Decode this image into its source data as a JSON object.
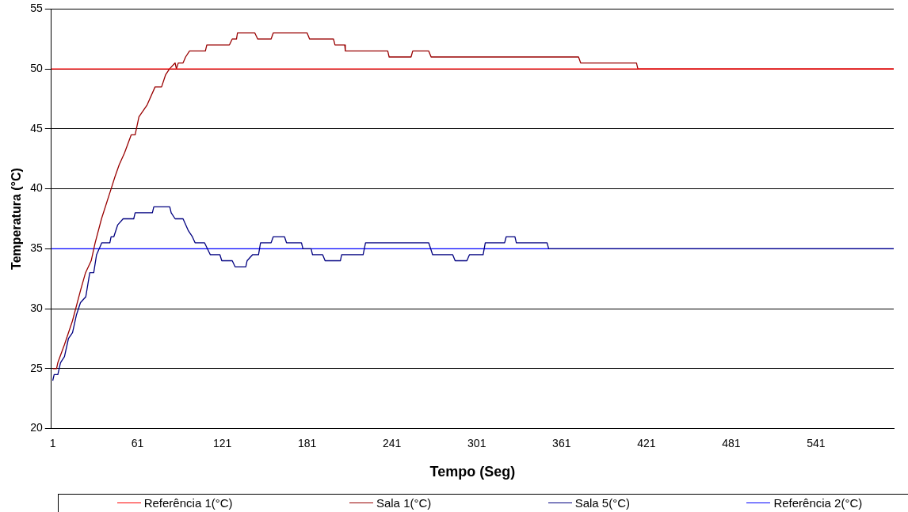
{
  "chart_data": {
    "type": "line",
    "xlabel": "Tempo (Seg)",
    "ylabel": "Temperatura (°C)",
    "xlim": [
      0,
      596
    ],
    "xticks": [
      1,
      61,
      121,
      181,
      241,
      301,
      361,
      421,
      481,
      541
    ],
    "ylim": [
      20,
      55
    ],
    "yticks": [
      20,
      25,
      30,
      35,
      40,
      45,
      50,
      55
    ],
    "grid": "y",
    "legend": "bottom",
    "series": [
      {
        "name": "Referência 1(°C)",
        "color": "#ff0000",
        "x": [
          0,
          596
        ],
        "values": [
          50,
          50
        ]
      },
      {
        "name": "Sala 1(°C)",
        "color": "#990000",
        "x": [
          1,
          3.7,
          4.6,
          9.3,
          15,
          20.6,
          24.2,
          28.2,
          31,
          35.5,
          42.3,
          45,
          48,
          51.8,
          56.5,
          59.3,
          62,
          67.8,
          73.4,
          78,
          80.8,
          83.6,
          87.6,
          88.5,
          89.8,
          93.2,
          95,
          97.8,
          109,
          110,
          126,
          128,
          131,
          131.7,
          144,
          146,
          155.5,
          157,
          181,
          182.7,
          199.6,
          200.7,
          207.6,
          208,
          238,
          239,
          254.5,
          255.7,
          267,
          268.7,
          373,
          374.5,
          414,
          415,
          596
        ],
        "values": [
          25,
          25,
          25.5,
          27,
          29,
          31.5,
          33,
          34,
          35.5,
          37.5,
          40,
          41,
          42,
          43,
          44.5,
          44.5,
          46,
          47,
          48.5,
          48.5,
          49.5,
          50,
          50.5,
          50,
          50.5,
          50.5,
          51,
          51.5,
          51.5,
          52,
          52,
          52.5,
          52.5,
          53,
          53,
          52.5,
          52.5,
          53,
          53,
          52.5,
          52.5,
          52,
          52,
          51.5,
          51.5,
          51,
          51,
          51.5,
          51.5,
          51,
          51,
          50.5,
          50.5,
          50,
          50
        ]
      },
      {
        "name": "Sala 5(°C)",
        "color": "#000080",
        "x": [
          1,
          2,
          4.6,
          6.5,
          9.3,
          12.1,
          15,
          17.8,
          20.6,
          24.4,
          27.2,
          30,
          32,
          35.7,
          41.4,
          42.3,
          44.2,
          47,
          50.8,
          58.3,
          59.3,
          71.5,
          72.5,
          83.8,
          84.8,
          87.6,
          93.2,
          97,
          99.8,
          101.7,
          108.4,
          112.5,
          119.3,
          120.6,
          128,
          130,
          137.6,
          138.5,
          142.3,
          146.6,
          148,
          155.5,
          157,
          165,
          166.4,
          177,
          178,
          183.8,
          184.8,
          192,
          193.7,
          204.5,
          205.4,
          220.6,
          222.3,
          267,
          269.8,
          284,
          285.7,
          294,
          295.8,
          305.5,
          307,
          320.7,
          321.8,
          328,
          329,
          350.7,
          351.9,
          596
        ],
        "values": [
          24,
          24.5,
          24.5,
          25.5,
          26,
          27.5,
          28,
          29.5,
          30.5,
          31,
          33,
          33,
          34.5,
          35.5,
          35.5,
          36,
          36,
          37,
          37.5,
          37.5,
          38,
          38,
          38.5,
          38.5,
          38,
          37.5,
          37.5,
          36.5,
          36,
          35.5,
          35.5,
          34.5,
          34.5,
          34,
          34,
          33.5,
          33.5,
          34,
          34.5,
          34.5,
          35.5,
          35.5,
          36,
          36,
          35.5,
          35.5,
          35,
          35,
          34.5,
          34.5,
          34,
          34,
          34.5,
          34.5,
          35.5,
          35.5,
          34.5,
          34.5,
          34,
          34,
          34.5,
          34.5,
          35.5,
          35.5,
          36,
          36,
          35.5,
          35.5,
          35,
          35
        ]
      },
      {
        "name": "Referência 2(°C)",
        "color": "#0000ff",
        "x": [
          0,
          596
        ],
        "values": [
          35,
          35
        ]
      }
    ]
  }
}
